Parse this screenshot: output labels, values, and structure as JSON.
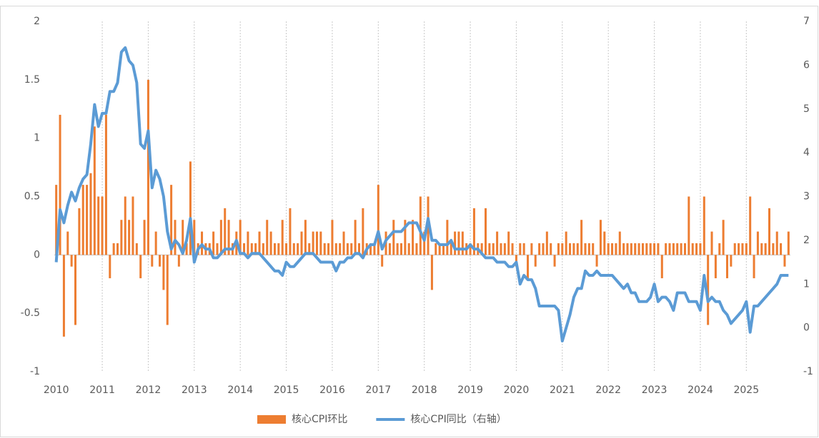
{
  "chart_data": {
    "type": "bar_line",
    "categories": [
      "2010",
      null,
      null,
      null,
      null,
      null,
      null,
      null,
      null,
      null,
      null,
      null,
      "2011",
      null,
      null,
      null,
      null,
      null,
      null,
      null,
      null,
      null,
      null,
      null,
      "2012",
      null,
      null,
      null,
      null,
      null,
      null,
      null,
      null,
      null,
      null,
      null,
      "2013",
      null,
      null,
      null,
      null,
      null,
      null,
      null,
      null,
      null,
      null,
      null,
      "2014",
      null,
      null,
      null,
      null,
      null,
      null,
      null,
      null,
      null,
      null,
      null,
      "2015",
      null,
      null,
      null,
      null,
      null,
      null,
      null,
      null,
      null,
      null,
      null,
      "2016",
      null,
      null,
      null,
      null,
      null,
      null,
      null,
      null,
      null,
      null,
      null,
      "2017",
      null,
      null,
      null,
      null,
      null,
      null,
      null,
      null,
      null,
      null,
      null,
      "2018",
      null,
      null,
      null,
      null,
      null,
      null,
      null,
      null,
      null,
      null,
      null,
      "2019",
      null,
      null,
      null,
      null,
      null,
      null,
      null,
      null,
      null,
      null,
      null,
      "2020",
      null,
      null,
      null,
      null,
      null,
      null,
      null,
      null,
      null,
      null,
      null,
      "2021",
      null,
      null,
      null,
      null,
      null,
      null,
      null,
      null,
      null,
      null,
      null,
      "2022",
      null,
      null,
      null,
      null,
      null,
      null,
      null,
      null,
      null,
      null,
      null,
      "2023",
      null,
      null,
      null,
      null,
      null,
      null,
      null,
      null,
      null,
      null,
      null,
      "2024",
      null,
      null,
      null,
      null,
      null,
      null,
      null,
      null,
      null,
      null,
      null,
      "2025",
      null,
      null,
      null,
      null,
      null,
      null,
      null,
      null,
      null,
      null,
      null
    ],
    "series": [
      {
        "name": "核心CPI环比",
        "color": "#ED7D31",
        "kind": "bar",
        "values": [
          0.6,
          1.2,
          -0.7,
          0.2,
          -0.1,
          -0.6,
          0.4,
          0.6,
          0.6,
          0.7,
          1.1,
          0.5,
          0.5,
          1.2,
          -0.2,
          0.1,
          0.1,
          0.3,
          0.5,
          0.3,
          0.5,
          0.1,
          -0.2,
          0.3,
          1.5,
          -0.1,
          0.2,
          -0.1,
          -0.3,
          -0.6,
          0.6,
          0.3,
          -0.1,
          0.3,
          0.1,
          0.8,
          0.3,
          0.1,
          0.2,
          0.1,
          0.1,
          0.2,
          0.1,
          0.3,
          0.4,
          0.3,
          0.1,
          0.2,
          0.3,
          0.1,
          0.2,
          0.1,
          0.1,
          0.2,
          0.1,
          0.3,
          0.2,
          0.1,
          0.1,
          0.3,
          0.1,
          0.4,
          0.1,
          0.1,
          0.2,
          0.3,
          0.1,
          0.2,
          0.2,
          0.2,
          0.1,
          0.1,
          0.3,
          0.1,
          0.1,
          0.2,
          0.1,
          0.1,
          0.3,
          0.1,
          0.4,
          0.1,
          0.1,
          0.1,
          0.6,
          -0.1,
          0.2,
          0.1,
          0.3,
          0.1,
          0.1,
          0.3,
          0.1,
          0.3,
          0.1,
          0.5,
          0.2,
          0.5,
          -0.3,
          0.1,
          0.1,
          0.1,
          0.3,
          0.1,
          0.2,
          0.2,
          0.2,
          0.1,
          0.1,
          0.4,
          0.1,
          0.1,
          0.4,
          0.1,
          0.1,
          0.2,
          0.1,
          0.1,
          0.2,
          0.1,
          -0.1,
          0.1,
          0.1,
          -0.2,
          0.1,
          -0.1,
          0.1,
          0.1,
          0.2,
          0.1,
          -0.1,
          0.1,
          0.1,
          0.2,
          0.1,
          0.1,
          0.1,
          0.3,
          0.1,
          0.1,
          0.1,
          -0.1,
          0.3,
          0.2,
          0.1,
          0.1,
          0.1,
          0.2,
          0.1,
          0.1,
          0.1,
          0.1,
          0.1,
          0.1,
          0.1,
          0.1,
          0.1,
          0.1,
          -0.2,
          0.1,
          0.1,
          0.1,
          0.1,
          0.1,
          0.1,
          0.5,
          0.1,
          0.1,
          0.1,
          0.5,
          -0.6,
          0.2,
          -0.2,
          0.1,
          0.3,
          -0.2,
          -0.1,
          0.1,
          0.1,
          0.1,
          0.1,
          0.5,
          -0.2,
          0.2,
          0.1,
          0.1,
          0.4,
          0.1,
          0.2,
          0.1,
          -0.1,
          0.2
        ]
      },
      {
        "name": "核心CPI同比（右轴）",
        "color": "#5B9BD5",
        "kind": "line",
        "axis": "y2",
        "values": [
          1.5,
          2.7,
          2.4,
          2.8,
          3.1,
          2.9,
          3.2,
          3.4,
          3.5,
          4.2,
          5.1,
          4.6,
          4.9,
          4.9,
          5.4,
          5.4,
          5.6,
          6.3,
          6.4,
          6.1,
          6.0,
          5.6,
          4.2,
          4.1,
          4.5,
          3.2,
          3.6,
          3.4,
          3.0,
          2.2,
          1.8,
          2.0,
          1.9,
          1.7,
          2.0,
          2.5,
          1.5,
          1.8,
          1.9,
          1.8,
          1.8,
          1.6,
          1.6,
          1.7,
          1.8,
          1.8,
          1.8,
          2.0,
          1.7,
          1.7,
          1.6,
          1.7,
          1.7,
          1.7,
          1.6,
          1.5,
          1.4,
          1.3,
          1.3,
          1.2,
          1.5,
          1.4,
          1.4,
          1.5,
          1.6,
          1.7,
          1.7,
          1.7,
          1.6,
          1.5,
          1.5,
          1.5,
          1.5,
          1.3,
          1.5,
          1.5,
          1.6,
          1.6,
          1.7,
          1.7,
          1.6,
          1.8,
          1.9,
          1.9,
          2.2,
          1.8,
          2.0,
          2.1,
          2.2,
          2.2,
          2.2,
          2.3,
          2.4,
          2.4,
          2.4,
          2.2,
          2.0,
          2.5,
          2.0,
          2.0,
          1.9,
          1.9,
          1.9,
          2.0,
          1.8,
          1.8,
          1.8,
          1.8,
          1.9,
          1.8,
          1.8,
          1.7,
          1.6,
          1.6,
          1.6,
          1.5,
          1.5,
          1.5,
          1.4,
          1.4,
          1.5,
          1.0,
          1.2,
          1.1,
          1.1,
          0.9,
          0.5,
          0.5,
          0.5,
          0.5,
          0.5,
          0.4,
          -0.3,
          0.0,
          0.3,
          0.7,
          0.9,
          0.9,
          1.3,
          1.2,
          1.2,
          1.3,
          1.2,
          1.2,
          1.2,
          1.2,
          1.1,
          1.0,
          0.9,
          1.0,
          0.8,
          0.8,
          0.6,
          0.6,
          0.6,
          0.7,
          1.0,
          0.6,
          0.7,
          0.7,
          0.6,
          0.4,
          0.8,
          0.8,
          0.8,
          0.6,
          0.6,
          0.6,
          0.4,
          1.2,
          0.6,
          0.7,
          0.6,
          0.6,
          0.4,
          0.3,
          0.1,
          0.2,
          0.3,
          0.4,
          0.6,
          -0.1,
          0.5,
          0.5,
          0.6,
          0.7,
          0.8,
          0.9,
          1.0,
          1.2,
          1.2,
          1.2
        ]
      }
    ],
    "ylim": [
      -1,
      2
    ],
    "yticks": [
      -1,
      -0.5,
      0,
      0.5,
      1,
      1.5,
      2
    ],
    "y2lim": [
      -1,
      7
    ],
    "y2ticks": [
      -1,
      0,
      1,
      2,
      3,
      4,
      5,
      6,
      7
    ],
    "legend": "bottom"
  }
}
